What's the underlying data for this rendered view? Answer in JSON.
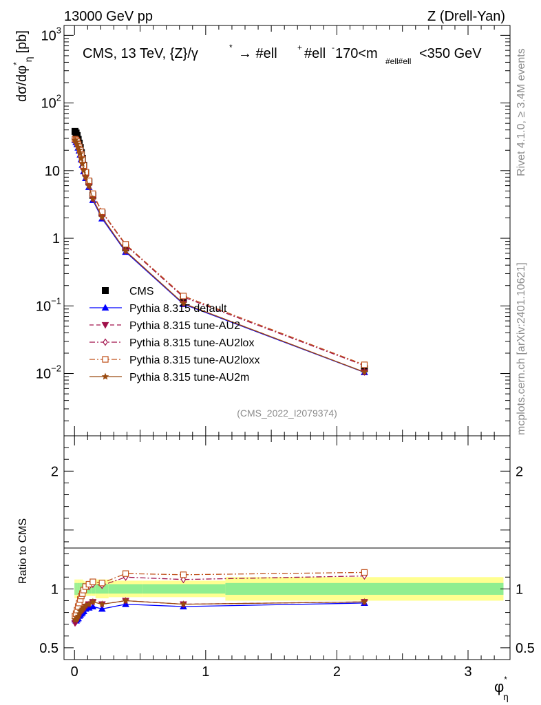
{
  "header": {
    "left": "13000 GeV pp",
    "right": "Z (Drell-Yan)"
  },
  "side": {
    "rivet": "Rivet 4.1.0, ≥ 3.4M events",
    "mcplots": "mcplots.cern.ch [arXiv:2401.10621]"
  },
  "labels": {
    "title_main": "CMS, 13 TeV, {Z}/γ",
    "title_arrow": "→  #ell",
    "title_ell2": "#ell",
    "title_mass": "170<m",
    "title_mass_sub": "#ell#ell",
    "title_tail": "<350 GeV",
    "star": "*",
    "plus": "+",
    "minus": "-",
    "ylabel": "dσ/dφ",
    "ylabel_sub": "η",
    "ylabel_unit": "[pb]",
    "ratio_ylabel": "Ratio to CMS",
    "xlabel": "φ",
    "xlabel_sub": "η",
    "watermark": "(CMS_2022_I2079374)"
  },
  "chart_data": {
    "type": "line",
    "title": "CMS, 13 TeV, {Z}/γ* → #ell+ #ell-, 170<m_#ell#ell<350 GeV",
    "xlabel": "φ*_η",
    "ylabel": "dσ/dφ*_η [pb]",
    "ratio_ylabel": "Ratio to CMS",
    "xlim": [
      -0.08,
      3.32
    ],
    "ylim": [
      0.0012,
      1400
    ],
    "yscale": "log",
    "ratio_ylim": [
      0.4,
      2.3
    ],
    "x_ticks": [
      "0",
      "1",
      "2",
      "3"
    ],
    "y_ticks": [
      {
        "v": 0.01,
        "base": "10",
        "exp": "−2"
      },
      {
        "v": 0.1,
        "base": "10",
        "exp": "−1"
      },
      {
        "v": 1,
        "base": "1",
        "exp": ""
      },
      {
        "v": 10,
        "base": "10",
        "exp": ""
      },
      {
        "v": 100,
        "base": "10",
        "exp": "2"
      },
      {
        "v": 1000,
        "base": "10",
        "exp": "3"
      }
    ],
    "ratio_ticks": [
      {
        "v": 0.5,
        "label": "0.5"
      },
      {
        "v": 1,
        "label": "1"
      },
      {
        "v": 2,
        "label": "2"
      }
    ],
    "x": [
      0.004,
      0.012,
      0.02,
      0.028,
      0.036,
      0.044,
      0.052,
      0.06,
      0.07,
      0.085,
      0.11,
      0.14,
      0.21,
      0.39,
      0.83,
      2.21
    ],
    "x_edges": [
      0,
      0.008,
      0.016,
      0.024,
      0.032,
      0.04,
      0.048,
      0.056,
      0.064,
      0.076,
      0.094,
      0.126,
      0.16,
      0.26,
      0.52,
      1.15,
      3.27
    ],
    "data_values": [
      38,
      36,
      33,
      29,
      25.5,
      22,
      18.5,
      15.2,
      12,
      9.3,
      6.8,
      4.3,
      2.35,
      0.72,
      0.125,
      0.0118
    ],
    "band_inner": [
      0.05,
      0.05,
      0.05,
      0.05,
      0.05,
      0.05,
      0.05,
      0.05,
      0.05,
      0.04,
      0.04,
      0.04,
      0.04,
      0.04,
      0.04,
      0.05
    ],
    "band_outer": [
      0.08,
      0.08,
      0.08,
      0.08,
      0.08,
      0.08,
      0.08,
      0.08,
      0.07,
      0.06,
      0.06,
      0.06,
      0.08,
      0.07,
      0.07,
      0.1
    ],
    "series": [
      {
        "name": "Pythia 8.315 default",
        "color": "#0000ff",
        "style": "solid",
        "marker": "triangle-up",
        "filled": true,
        "ratio": [
          0.74,
          0.73,
          0.74,
          0.75,
          0.77,
          0.78,
          0.79,
          0.8,
          0.81,
          0.83,
          0.84,
          0.85,
          0.83,
          0.87,
          0.85,
          0.88
        ]
      },
      {
        "name": "Pythia 8.315 tune-AU2",
        "color": "#a0104a",
        "style": "dash",
        "marker": "triangle-down",
        "filled": true,
        "ratio": [
          0.71,
          0.72,
          0.74,
          0.76,
          0.78,
          0.8,
          0.81,
          0.82,
          0.83,
          0.85,
          0.87,
          0.89,
          0.87,
          0.9,
          0.87,
          0.89
        ]
      },
      {
        "name": "Pythia 8.315 tune-AU2lox",
        "color": "#a0104a",
        "style": "dashdot",
        "marker": "diamond",
        "filled": false,
        "ratio": [
          0.76,
          0.78,
          0.81,
          0.84,
          0.87,
          0.9,
          0.93,
          0.95,
          0.98,
          1.01,
          1.02,
          1.04,
          1.03,
          1.1,
          1.08,
          1.11
        ]
      },
      {
        "name": "Pythia 8.315 tune-AU2loxx",
        "color": "#c0501a",
        "style": "dashdot",
        "marker": "square",
        "filled": false,
        "ratio": [
          0.77,
          0.79,
          0.82,
          0.85,
          0.88,
          0.91,
          0.94,
          0.96,
          0.99,
          1.02,
          1.04,
          1.06,
          1.05,
          1.13,
          1.12,
          1.14
        ]
      },
      {
        "name": "Pythia 8.315 tune-AU2m",
        "color": "#9a4a10",
        "style": "solid",
        "marker": "star",
        "filled": true,
        "ratio": [
          0.74,
          0.74,
          0.75,
          0.77,
          0.79,
          0.81,
          0.82,
          0.83,
          0.84,
          0.86,
          0.87,
          0.89,
          0.87,
          0.9,
          0.87,
          0.89
        ]
      }
    ],
    "legend": {
      "position": "bottom-left",
      "data_label": "CMS"
    },
    "colors": {
      "data": "#000000",
      "band_inner": "#90ee90",
      "band_outer": "#ffff90",
      "axis": "#000000",
      "ref_line": "#000000"
    }
  }
}
